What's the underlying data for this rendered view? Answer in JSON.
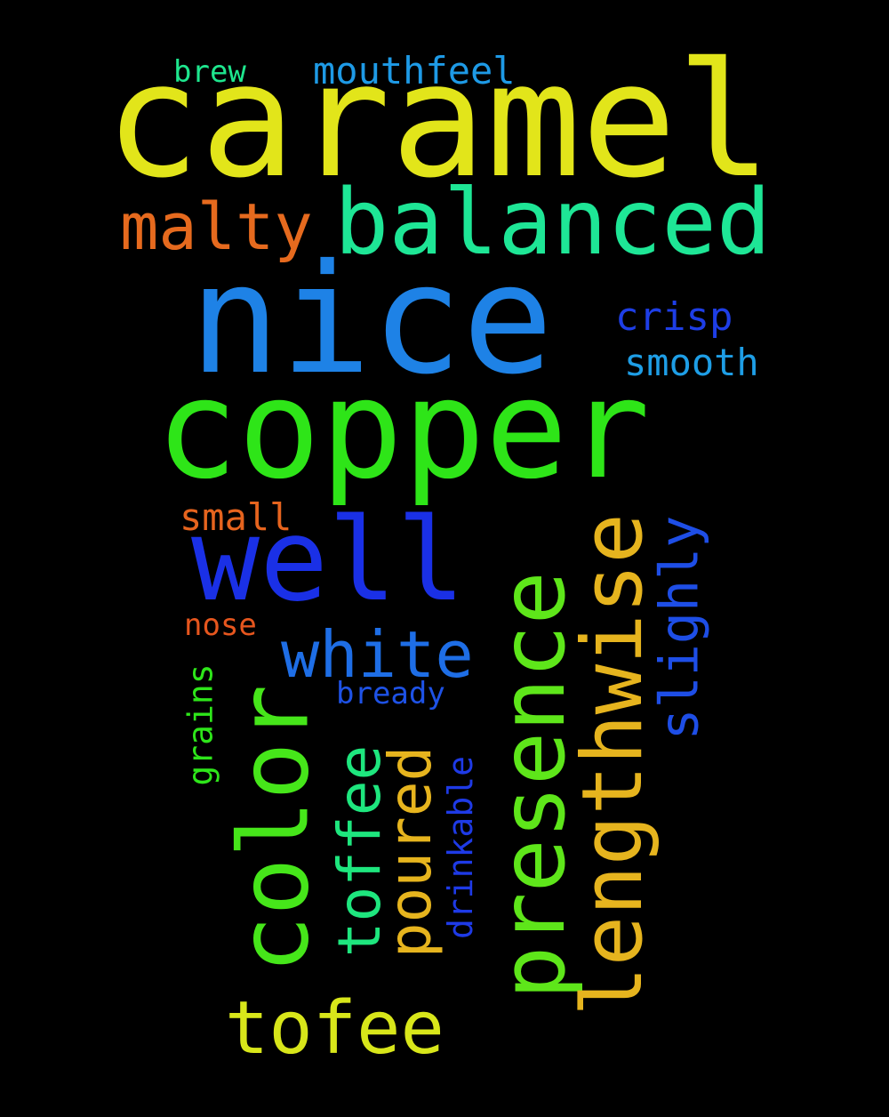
{
  "background": "#000000",
  "words": [
    {
      "id": "caramel",
      "text": "caramel",
      "color": "#e2e51a"
    },
    {
      "id": "nice",
      "text": "nice",
      "color": "#1e82e6"
    },
    {
      "id": "copper",
      "text": "copper",
      "color": "#2ee518"
    },
    {
      "id": "well",
      "text": "well",
      "color": "#1a30e6"
    },
    {
      "id": "balanced",
      "text": "balanced",
      "color": "#1ee696"
    },
    {
      "id": "malty",
      "text": "malty",
      "color": "#e66a1e"
    },
    {
      "id": "presence",
      "text": "presence",
      "color": "#5ee61a"
    },
    {
      "id": "color",
      "text": "color",
      "color": "#46e61a"
    },
    {
      "id": "lengthwise",
      "text": "lengthwise",
      "color": "#e6b41e"
    },
    {
      "id": "white",
      "text": "white",
      "color": "#1e6ee6"
    },
    {
      "id": "tofee",
      "text": "tofee",
      "color": "#d8e61a"
    },
    {
      "id": "toffee",
      "text": "toffee",
      "color": "#1ee67e"
    },
    {
      "id": "poured",
      "text": "poured",
      "color": "#e6b41e"
    },
    {
      "id": "slighly",
      "text": "slighly",
      "color": "#1e4ee6"
    },
    {
      "id": "crisp",
      "text": "crisp",
      "color": "#1e3ee6"
    },
    {
      "id": "smooth",
      "text": "smooth",
      "color": "#1e9ee6"
    },
    {
      "id": "mouthfeel",
      "text": "mouthfeel",
      "color": "#1e9ae6"
    },
    {
      "id": "brew",
      "text": "brew",
      "color": "#1ee68e"
    },
    {
      "id": "small",
      "text": "small",
      "color": "#e6641e"
    },
    {
      "id": "nose",
      "text": "nose",
      "color": "#e6561e"
    },
    {
      "id": "grains",
      "text": "grains",
      "color": "#2ee61a"
    },
    {
      "id": "bready",
      "text": "bready",
      "color": "#1e52e6"
    },
    {
      "id": "drinkable",
      "text": "drinkable",
      "color": "#1e3ae6"
    }
  ]
}
